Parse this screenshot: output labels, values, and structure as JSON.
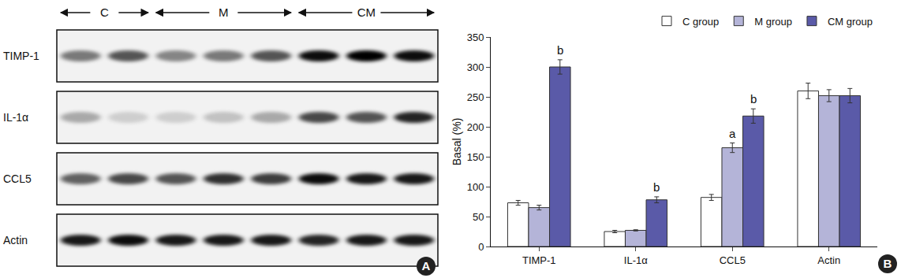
{
  "chart_data": {
    "type": "bar",
    "y_label": "Basal (%)",
    "categories": [
      "TIMP-1",
      "IL-1α",
      "CCL5",
      "Actin"
    ],
    "series": [
      {
        "name": "C group",
        "color": "#ffffff",
        "values": [
          73,
          25,
          82,
          260
        ],
        "errors": [
          4,
          2,
          5,
          13
        ]
      },
      {
        "name": "M group",
        "color": "#b4b4d8",
        "values": [
          65,
          27,
          165,
          252
        ],
        "errors": [
          4,
          1,
          8,
          10
        ]
      },
      {
        "name": "CM group",
        "color": "#5a5aa8",
        "values": [
          300,
          78,
          218,
          252
        ],
        "errors": [
          12,
          5,
          12,
          12
        ]
      }
    ],
    "ylim": [
      0,
      350
    ],
    "yticks": [
      0,
      50,
      100,
      150,
      200,
      250,
      300,
      350
    ],
    "grid": false,
    "legend": "top right",
    "annotations": [
      {
        "category": "TIMP-1",
        "series": "CM group",
        "text": "b"
      },
      {
        "category": "IL-1α",
        "series": "CM group",
        "text": "b"
      },
      {
        "category": "CCL5",
        "series": "M group",
        "text": "a"
      },
      {
        "category": "CCL5",
        "series": "CM group",
        "text": "b"
      }
    ],
    "panel_label": "B"
  },
  "blot": {
    "panel_label": "A",
    "groups": [
      {
        "label": "C",
        "lanes": 2
      },
      {
        "label": "M",
        "lanes": 3
      },
      {
        "label": "CM",
        "lanes": 3
      }
    ],
    "rows": [
      {
        "label": "TIMP-1",
        "bands": [
          0.5,
          0.65,
          0.45,
          0.5,
          0.65,
          0.95,
          1,
          0.95
        ]
      },
      {
        "label": "IL-1α",
        "bands": [
          0.3,
          0.15,
          0.15,
          0.2,
          0.3,
          0.7,
          0.65,
          0.85
        ]
      },
      {
        "label": "CCL5",
        "bands": [
          0.6,
          0.7,
          0.65,
          0.8,
          0.75,
          0.95,
          0.9,
          0.9
        ]
      },
      {
        "label": "Actin",
        "bands": [
          0.9,
          0.95,
          0.9,
          0.9,
          0.9,
          0.85,
          0.9,
          0.9
        ]
      }
    ]
  }
}
